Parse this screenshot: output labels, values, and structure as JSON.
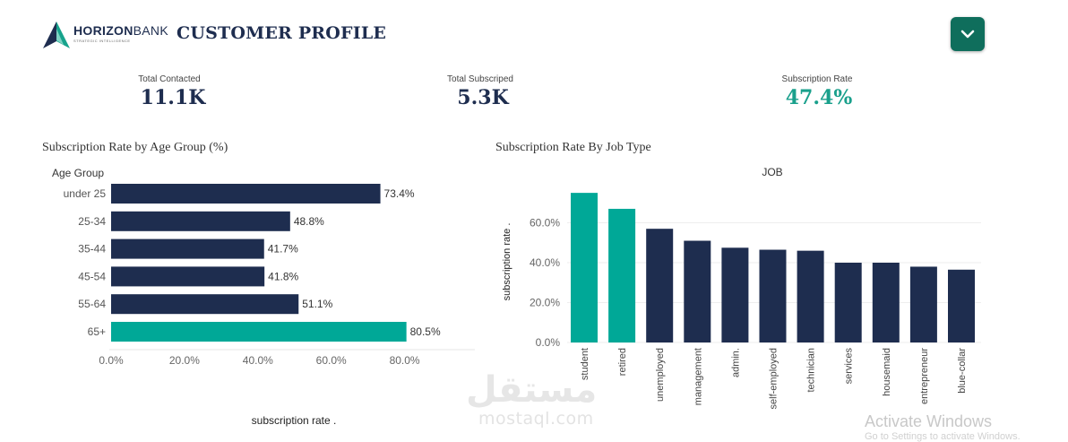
{
  "header": {
    "brand_bold": "HORIZON",
    "brand_light": "BANK",
    "brand_tagline": "STRATEGIC INTELLIGENCE",
    "title": "CUSTOMER PROFILE",
    "menu_icon": "chevron-down-icon"
  },
  "kpis": [
    {
      "label": "Total Contacted",
      "value": "11.1K",
      "color": "#1e2d4f"
    },
    {
      "label": "Total Subscriped",
      "value": "5.3K",
      "color": "#1e2d4f"
    },
    {
      "label": "Subscription Rate",
      "value": "47.4%",
      "color": "#1aa08c"
    }
  ],
  "colors": {
    "navy": "#1e2d4f",
    "teal": "#00a897"
  },
  "chart_data": [
    {
      "type": "bar",
      "orientation": "horizontal",
      "title": "Subscription Rate by Age Group (%)",
      "category_header": "Age Group",
      "xlabel": "subscription rate .",
      "categories": [
        "under 25",
        "25-34",
        "35-44",
        "45-54",
        "55-64",
        "65+"
      ],
      "values": [
        73.4,
        48.8,
        41.7,
        41.8,
        51.1,
        80.5
      ],
      "data_labels": [
        "73.4%",
        "48.8%",
        "41.7%",
        "41.8%",
        "51.1%",
        "80.5%"
      ],
      "highlight": [
        "65+"
      ],
      "xticks": [
        "0.0%",
        "20.0%",
        "40.0%",
        "60.0%",
        "80.0%"
      ],
      "xlim": [
        0,
        95
      ]
    },
    {
      "type": "bar",
      "orientation": "vertical",
      "title": "Subscription Rate By Job Type",
      "header": "JOB",
      "ylabel": "subscription rate .",
      "categories": [
        "student",
        "retired",
        "unemployed",
        "management",
        "admin.",
        "self-employed",
        "technician",
        "services",
        "housemaid",
        "entrepreneur",
        "blue-collar"
      ],
      "values": [
        75.0,
        67.0,
        57.0,
        51.0,
        47.5,
        46.5,
        46.0,
        40.0,
        40.0,
        38.0,
        36.5
      ],
      "highlight": [
        "student",
        "retired"
      ],
      "yticks": [
        "0.0%",
        "20.0%",
        "40.0%",
        "60.0%"
      ],
      "ylim": [
        0,
        80
      ]
    }
  ],
  "watermark": {
    "arabic": "مستقل",
    "latin": "mostaql.com"
  },
  "os_notice": {
    "title": "Activate Windows",
    "sub": "Go to Settings to activate Windows."
  }
}
